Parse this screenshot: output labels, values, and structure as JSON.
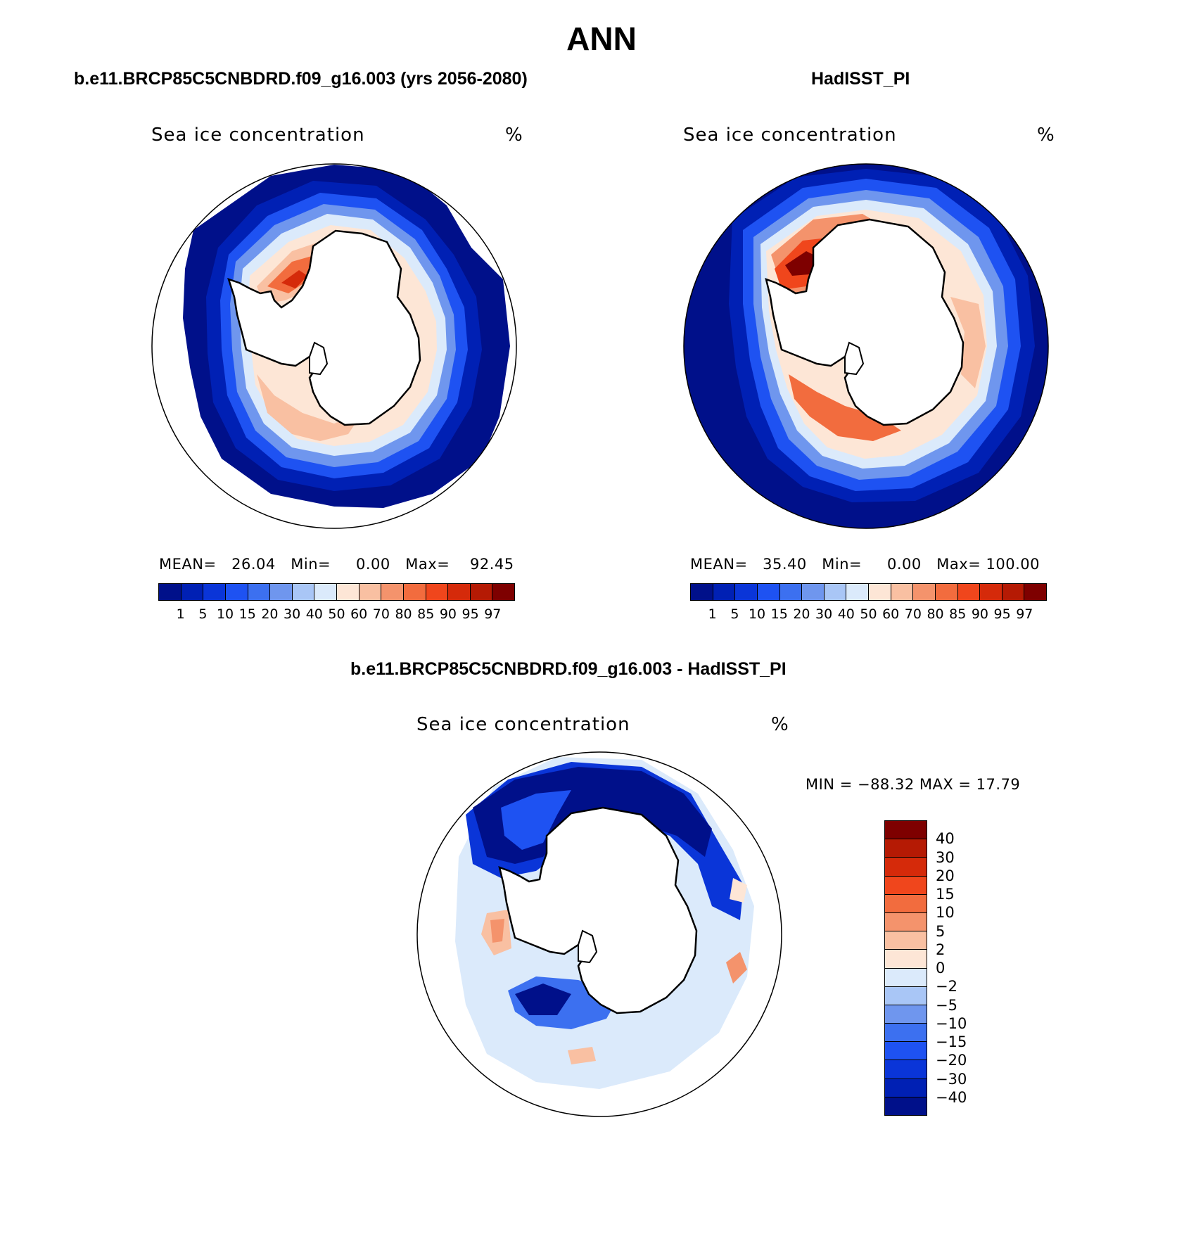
{
  "figure": {
    "title": "ANN",
    "panel1_title": "b.e11.BRCP85C5CNBDRD.f09_g16.003 (yrs 2056-2080)",
    "panel2_title": "HadISST_PI",
    "panel3_title": "b.e11.BRCP85C5CNBDRD.f09_g16.003 - HadISST_PI"
  },
  "panels": [
    {
      "variable": "Sea ice concentration",
      "unit": "%",
      "mean_label": "MEAN=",
      "mean": "26.04",
      "min_label": "Min=",
      "min": "0.00",
      "max_label": "Max=",
      "max": "92.45"
    },
    {
      "variable": "Sea ice concentration",
      "unit": "%",
      "mean_label": "MEAN=",
      "mean": "35.40",
      "min_label": "Min=",
      "min": "0.00",
      "max_label": "Max=",
      "max": "100.00"
    },
    {
      "variable": "Sea ice concentration",
      "unit": "%",
      "minmax_text": "MIN = −88.32 MAX =   17.79"
    }
  ],
  "colorbar_levels": [
    "1",
    "5",
    "10",
    "15",
    "20",
    "30",
    "40",
    "50",
    "60",
    "70",
    "80",
    "85",
    "90",
    "95",
    "97"
  ],
  "colorbar_colors": [
    "#00108a",
    "#0020b4",
    "#0a35d8",
    "#1e52f2",
    "#3c70f0",
    "#6f96ee",
    "#a9c6f6",
    "#dbeafb",
    "#fde6d6",
    "#f9c0a2",
    "#f4936c",
    "#f26c3e",
    "#f0461c",
    "#d52a0a",
    "#b51a04",
    "#7e0000"
  ],
  "diff_colorbar_levels": [
    "40",
    "30",
    "20",
    "15",
    "10",
    "5",
    "2",
    "0",
    "−2",
    "−5",
    "−10",
    "−15",
    "−20",
    "−30",
    "−40"
  ],
  "diff_colorbar_colors": [
    "#7e0000",
    "#b51a04",
    "#d52a0a",
    "#f0461c",
    "#f26c3e",
    "#f4936c",
    "#f9c0a2",
    "#fde6d6",
    "#dbeafb",
    "#a9c6f6",
    "#6f96ee",
    "#3c70f0",
    "#1e52f2",
    "#0a35d8",
    "#0020b4",
    "#00108a"
  ]
}
